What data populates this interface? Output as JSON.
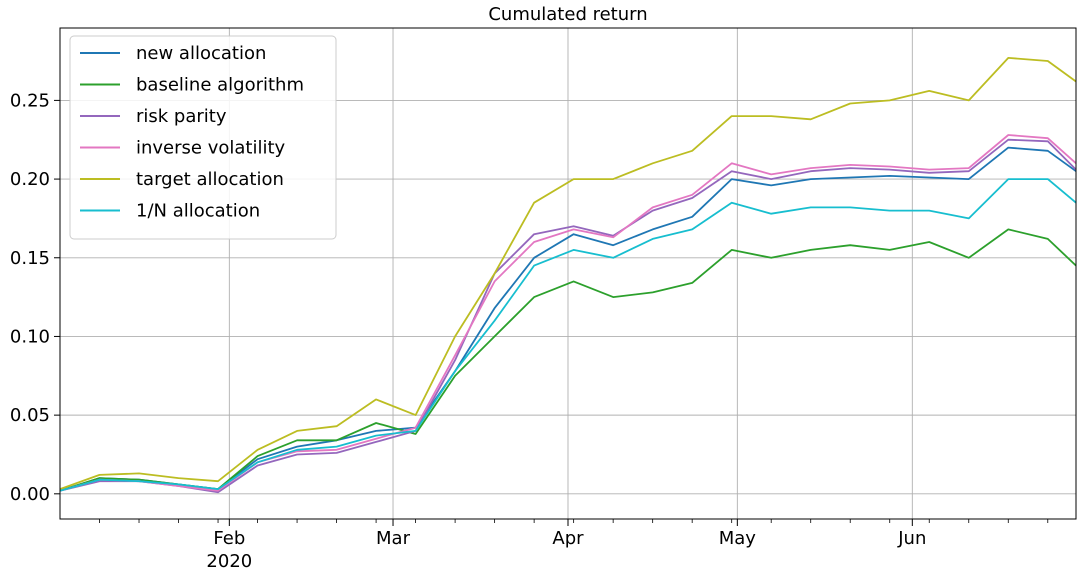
{
  "chart_data": {
    "type": "line",
    "title": "Cumulated return",
    "ylim": [
      -0.016,
      0.296
    ],
    "xlim": [
      "2020-01-02",
      "2020-06-30"
    ],
    "grid": true,
    "legend_position": "top-left",
    "y_ticks": [
      "0.00",
      "0.05",
      "0.10",
      "0.15",
      "0.20",
      "0.25"
    ],
    "x_major_ticks": [
      {
        "date": "2020-02-01",
        "label": "Feb",
        "sublabel": "2020"
      },
      {
        "date": "2020-03-01",
        "label": "Mar",
        "sublabel": ""
      },
      {
        "date": "2020-04-01",
        "label": "Apr",
        "sublabel": ""
      },
      {
        "date": "2020-05-01",
        "label": "May",
        "sublabel": ""
      },
      {
        "date": "2020-06-01",
        "label": "Jun",
        "sublabel": ""
      }
    ],
    "x": [
      "2020-01-02",
      "2020-01-09",
      "2020-01-16",
      "2020-01-23",
      "2020-01-30",
      "2020-02-06",
      "2020-02-13",
      "2020-02-20",
      "2020-02-27",
      "2020-03-05",
      "2020-03-12",
      "2020-03-19",
      "2020-03-26",
      "2020-04-02",
      "2020-04-09",
      "2020-04-16",
      "2020-04-23",
      "2020-04-30",
      "2020-05-07",
      "2020-05-14",
      "2020-05-21",
      "2020-05-28",
      "2020-06-04",
      "2020-06-11",
      "2020-06-18",
      "2020-06-25",
      "2020-06-30"
    ],
    "series": [
      {
        "name": "new allocation",
        "color": "#1f77b4",
        "values": [
          0.002,
          0.01,
          0.009,
          0.006,
          0.003,
          0.022,
          0.03,
          0.034,
          0.04,
          0.042,
          0.078,
          0.118,
          0.15,
          0.165,
          0.158,
          0.168,
          0.176,
          0.2,
          0.196,
          0.2,
          0.201,
          0.202,
          0.201,
          0.2,
          0.22,
          0.218,
          0.205
        ]
      },
      {
        "name": "baseline algorithm",
        "color": "#2ca02c",
        "values": [
          0.002,
          0.01,
          0.009,
          0.006,
          0.003,
          0.024,
          0.034,
          0.034,
          0.045,
          0.038,
          0.075,
          0.1,
          0.125,
          0.135,
          0.125,
          0.128,
          0.134,
          0.155,
          0.15,
          0.155,
          0.158,
          0.155,
          0.16,
          0.15,
          0.168,
          0.162,
          0.145
        ]
      },
      {
        "name": "risk parity",
        "color": "#9467bd",
        "values": [
          0.002,
          0.008,
          0.008,
          0.005,
          0.001,
          0.018,
          0.025,
          0.026,
          0.033,
          0.04,
          0.085,
          0.14,
          0.165,
          0.17,
          0.164,
          0.18,
          0.188,
          0.205,
          0.2,
          0.205,
          0.207,
          0.206,
          0.204,
          0.205,
          0.225,
          0.224,
          0.206
        ]
      },
      {
        "name": "inverse volatility",
        "color": "#e377c2",
        "values": [
          0.002,
          0.009,
          0.008,
          0.005,
          0.002,
          0.02,
          0.027,
          0.028,
          0.035,
          0.042,
          0.088,
          0.135,
          0.16,
          0.168,
          0.163,
          0.182,
          0.19,
          0.21,
          0.203,
          0.207,
          0.209,
          0.208,
          0.206,
          0.207,
          0.228,
          0.226,
          0.21
        ]
      },
      {
        "name": "target allocation",
        "color": "#bcbd22",
        "values": [
          0.003,
          0.012,
          0.013,
          0.01,
          0.008,
          0.028,
          0.04,
          0.043,
          0.06,
          0.05,
          0.1,
          0.14,
          0.185,
          0.2,
          0.2,
          0.21,
          0.218,
          0.24,
          0.24,
          0.238,
          0.248,
          0.25,
          0.256,
          0.25,
          0.277,
          0.275,
          0.262
        ]
      },
      {
        "name": "1/N allocation",
        "color": "#17becf",
        "values": [
          0.002,
          0.009,
          0.008,
          0.006,
          0.003,
          0.02,
          0.028,
          0.03,
          0.037,
          0.04,
          0.078,
          0.11,
          0.145,
          0.155,
          0.15,
          0.162,
          0.168,
          0.185,
          0.178,
          0.182,
          0.182,
          0.18,
          0.18,
          0.175,
          0.2,
          0.2,
          0.185
        ]
      }
    ]
  }
}
